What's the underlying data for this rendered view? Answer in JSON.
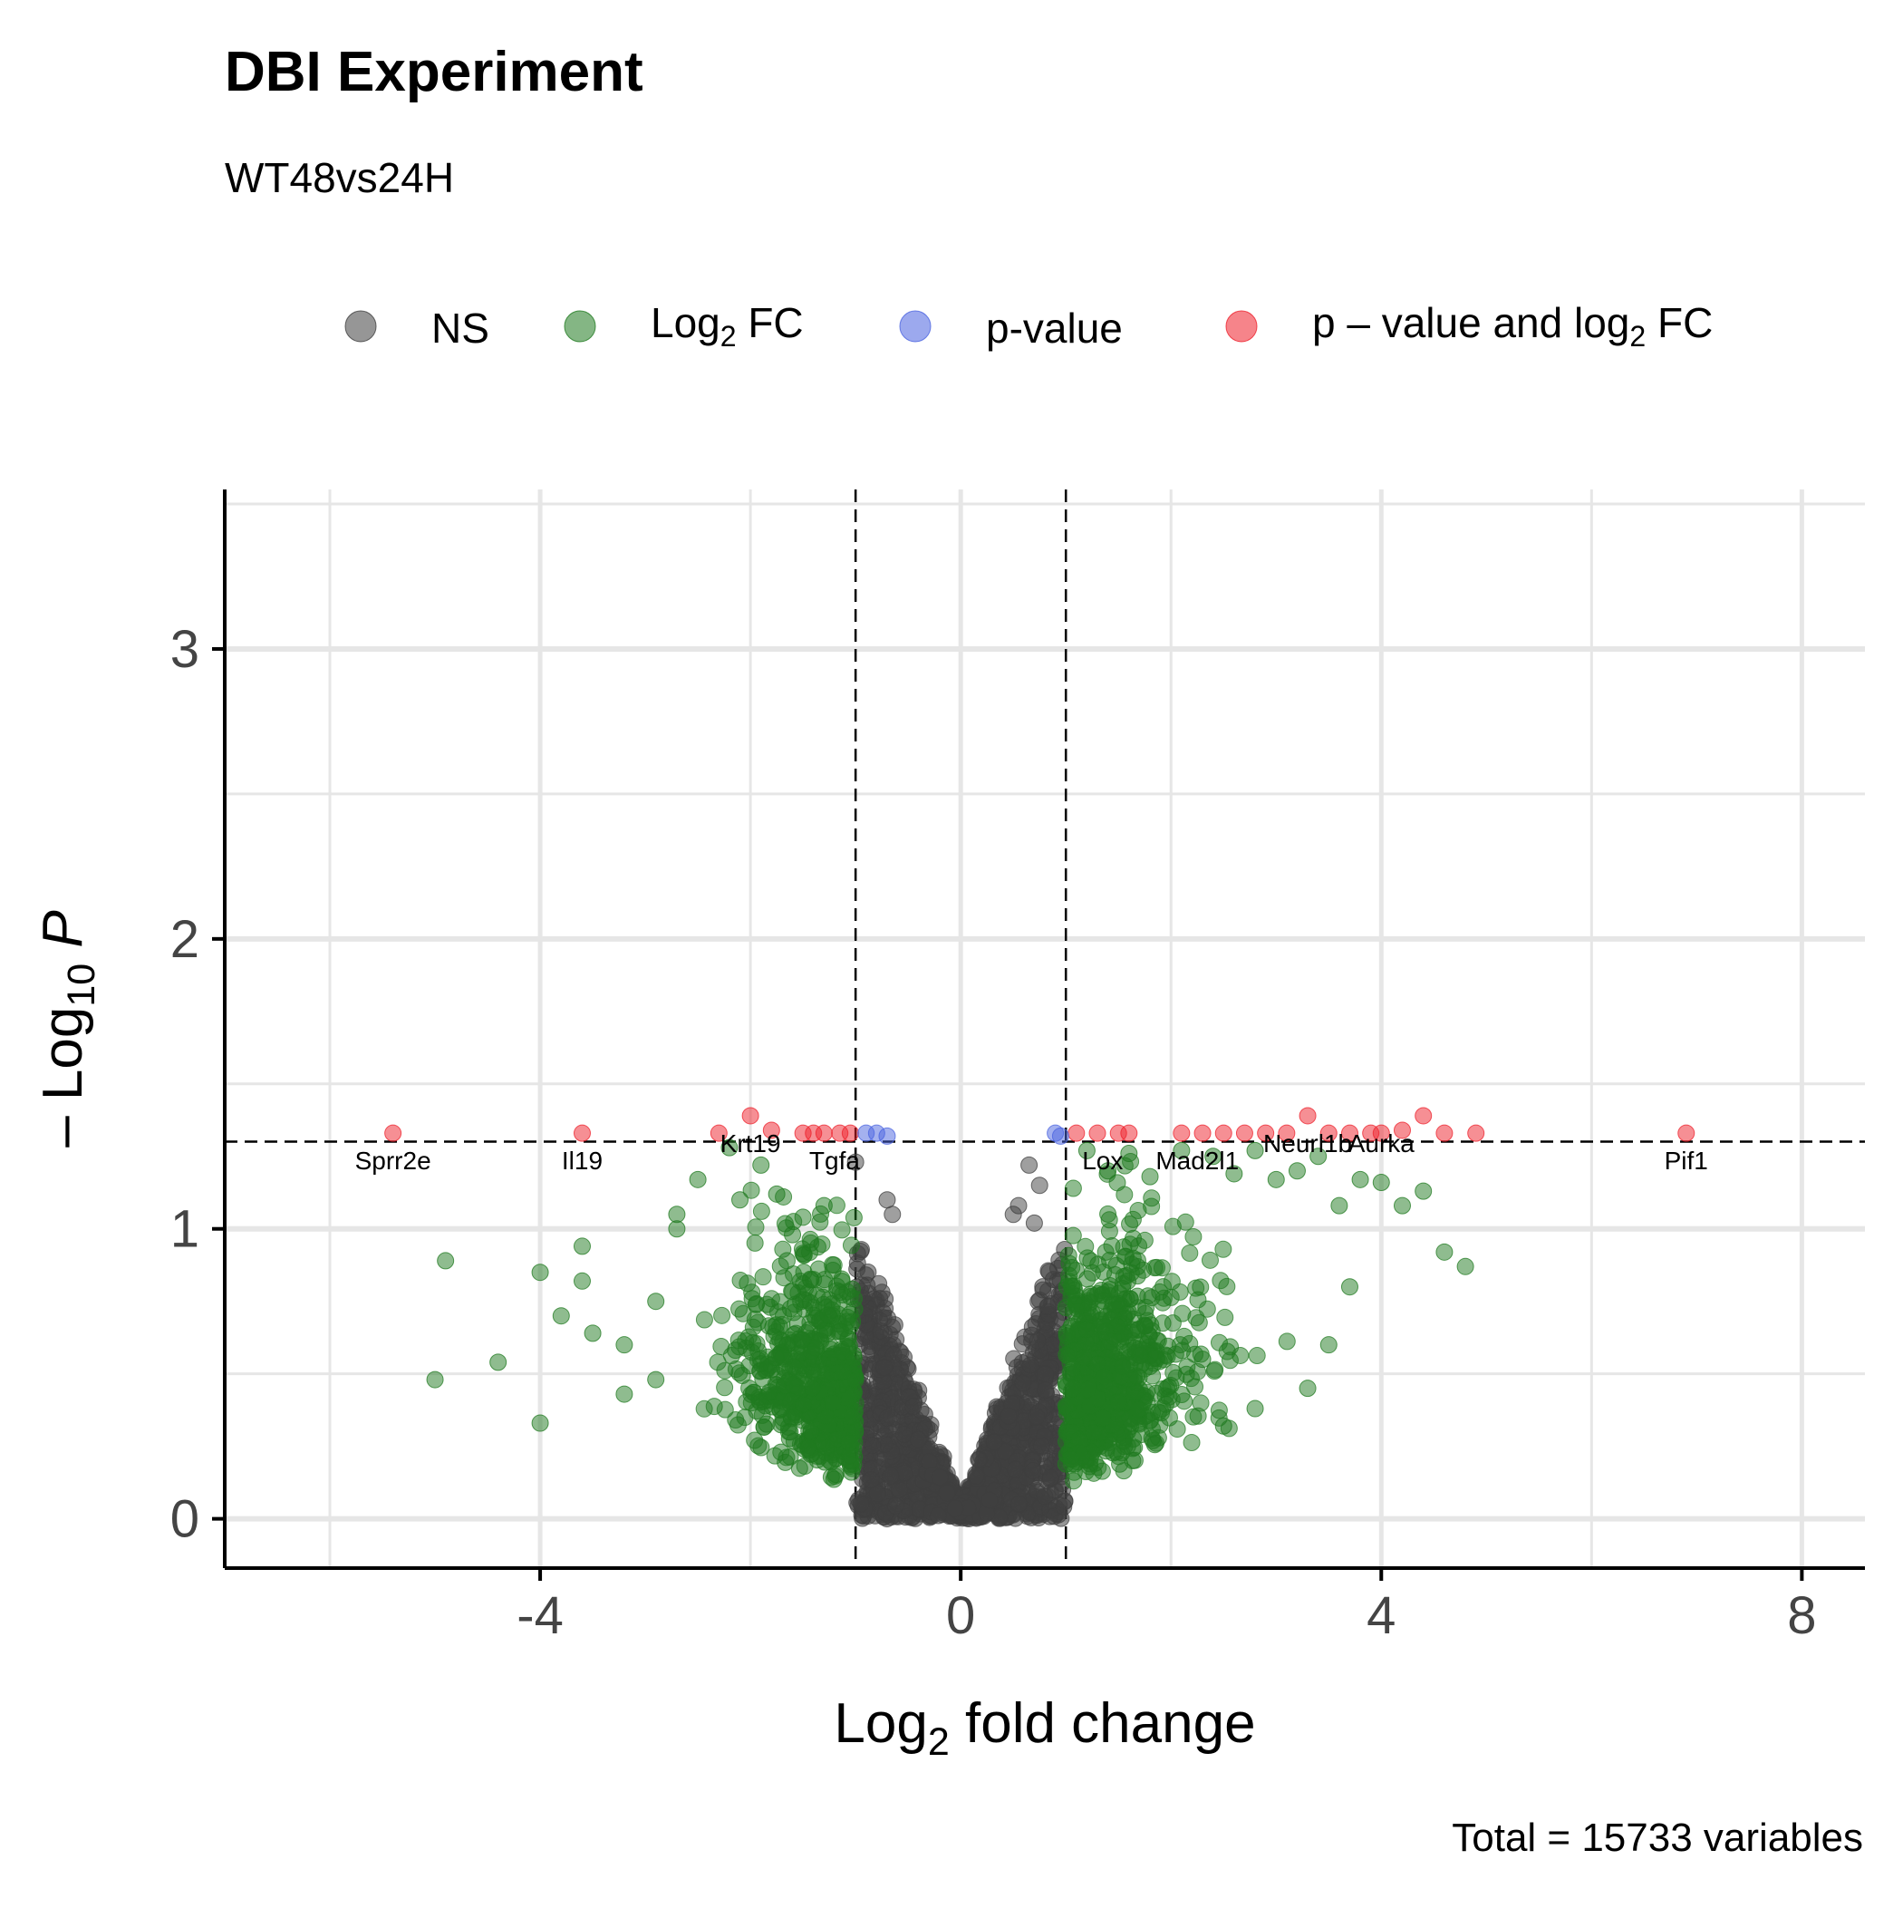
{
  "chart_data": {
    "type": "scatter",
    "title": "DBI Experiment",
    "subtitle": "WT48vs24H",
    "xlabel": {
      "base": "Log",
      "sub": "2",
      "rest": " fold change"
    },
    "ylabel": {
      "prefix": "– Log",
      "sub": "10",
      "rest": " P"
    },
    "caption": "Total = 15733 variables",
    "xlim": [
      -7.0,
      8.6
    ],
    "ylim": [
      -0.17,
      3.55
    ],
    "x_ticks": [
      -4,
      0,
      4,
      8
    ],
    "x_tick_labels": [
      "-4",
      "0",
      "4",
      "8"
    ],
    "y_ticks": [
      0,
      1,
      2,
      3
    ],
    "y_tick_labels": [
      "0",
      "1",
      "2",
      "3"
    ],
    "fc_cutoff": 1.0,
    "p_cutoff_log": 1.301,
    "grid": true,
    "legend_position": "top",
    "legend": [
      {
        "key": "ns",
        "label": "NS",
        "color": "#3f3f3f"
      },
      {
        "key": "fc",
        "label_base": "Log",
        "label_sub": "2",
        "label_rest": " FC",
        "color": "#1f7a1f"
      },
      {
        "key": "p",
        "label": "p-value",
        "color": "#4a63e0"
      },
      {
        "key": "both",
        "label_base": "p – value and log",
        "label_sub": "2",
        "label_rest": " FC",
        "color": "#ee1f2a"
      }
    ],
    "colors": {
      "ns": "#3f3f3f",
      "fc": "#1f7a1f",
      "p": "#4a63e0",
      "both": "#ee1f2a"
    },
    "series": [
      {
        "key": "both",
        "points": [
          [
            -5.4,
            1.33
          ],
          [
            -3.6,
            1.33
          ],
          [
            -2.3,
            1.33
          ],
          [
            -2.0,
            1.39
          ],
          [
            -1.8,
            1.34
          ],
          [
            -1.5,
            1.33
          ],
          [
            -1.4,
            1.33
          ],
          [
            -1.3,
            1.33
          ],
          [
            -1.15,
            1.33
          ],
          [
            -1.05,
            1.33
          ],
          [
            1.1,
            1.33
          ],
          [
            1.3,
            1.33
          ],
          [
            1.5,
            1.33
          ],
          [
            1.6,
            1.33
          ],
          [
            2.1,
            1.33
          ],
          [
            2.3,
            1.33
          ],
          [
            2.5,
            1.33
          ],
          [
            2.7,
            1.33
          ],
          [
            2.9,
            1.33
          ],
          [
            3.1,
            1.33
          ],
          [
            3.3,
            1.39
          ],
          [
            3.5,
            1.33
          ],
          [
            3.7,
            1.33
          ],
          [
            3.9,
            1.33
          ],
          [
            4.0,
            1.33
          ],
          [
            4.2,
            1.34
          ],
          [
            4.4,
            1.39
          ],
          [
            4.6,
            1.33
          ],
          [
            4.9,
            1.33
          ],
          [
            6.9,
            1.33
          ]
        ]
      },
      {
        "key": "p",
        "points": [
          [
            -0.9,
            1.33
          ],
          [
            -0.8,
            1.33
          ],
          [
            -0.7,
            1.32
          ],
          [
            0.9,
            1.33
          ],
          [
            0.95,
            1.32
          ]
        ]
      },
      {
        "key": "fc",
        "points": [
          [
            -5.0,
            0.48
          ],
          [
            -4.9,
            0.89
          ],
          [
            -4.4,
            0.54
          ],
          [
            -4.0,
            0.33
          ],
          [
            -4.0,
            0.85
          ],
          [
            -3.8,
            0.7
          ],
          [
            -3.6,
            0.94
          ],
          [
            -3.6,
            0.82
          ],
          [
            -3.5,
            0.64
          ],
          [
            -3.2,
            0.43
          ],
          [
            -3.2,
            0.6
          ],
          [
            -2.9,
            0.48
          ],
          [
            -2.9,
            0.75
          ],
          [
            -2.7,
            1.05
          ],
          [
            -2.7,
            1.0
          ],
          [
            -2.5,
            1.17
          ],
          [
            -2.2,
            1.28
          ],
          [
            -2.1,
            1.1
          ],
          [
            -1.9,
            1.22
          ],
          [
            -1.75,
            1.12
          ],
          [
            -1.6,
            0.98
          ],
          [
            -1.5,
            1.04
          ],
          [
            -1.3,
            1.08
          ],
          [
            1.2,
            1.27
          ],
          [
            1.4,
            1.2
          ],
          [
            1.6,
            1.26
          ],
          [
            1.8,
            1.18
          ],
          [
            2.1,
            1.27
          ],
          [
            2.4,
            1.25
          ],
          [
            2.6,
            1.19
          ],
          [
            2.8,
            1.27
          ],
          [
            3.0,
            1.17
          ],
          [
            3.2,
            1.2
          ],
          [
            3.4,
            1.25
          ],
          [
            3.6,
            1.08
          ],
          [
            3.8,
            1.17
          ],
          [
            4.0,
            1.16
          ],
          [
            4.2,
            1.08
          ],
          [
            4.4,
            1.13
          ],
          [
            4.6,
            0.92
          ],
          [
            4.8,
            0.87
          ],
          [
            3.7,
            0.8
          ],
          [
            3.5,
            0.6
          ],
          [
            3.3,
            0.45
          ],
          [
            2.8,
            0.38
          ],
          [
            2.5,
            0.32
          ],
          [
            2.3,
            0.55
          ]
        ]
      },
      {
        "key": "ns",
        "points": [
          [
            -1.0,
            1.23
          ],
          [
            -0.7,
            1.1
          ],
          [
            -0.65,
            1.05
          ],
          [
            0.65,
            1.22
          ],
          [
            0.75,
            1.15
          ],
          [
            0.7,
            1.02
          ],
          [
            0.5,
            1.05
          ],
          [
            0.55,
            1.08
          ]
        ]
      }
    ],
    "labels": [
      {
        "text": "Sprr2e",
        "x": -5.4,
        "y": 1.33
      },
      {
        "text": "Il19",
        "x": -3.6,
        "y": 1.33
      },
      {
        "text": "Krt19",
        "x": -2.0,
        "y": 1.39
      },
      {
        "text": "Tgfa",
        "x": -1.2,
        "y": 1.33
      },
      {
        "text": "Lox",
        "x": 1.35,
        "y": 1.33
      },
      {
        "text": "Mad2l1",
        "x": 2.25,
        "y": 1.33
      },
      {
        "text": "Neurl1b",
        "x": 3.3,
        "y": 1.39
      },
      {
        "text": "Aurka",
        "x": 4.0,
        "y": 1.39
      },
      {
        "text": "Pif1",
        "x": 6.9,
        "y": 1.33
      }
    ]
  }
}
